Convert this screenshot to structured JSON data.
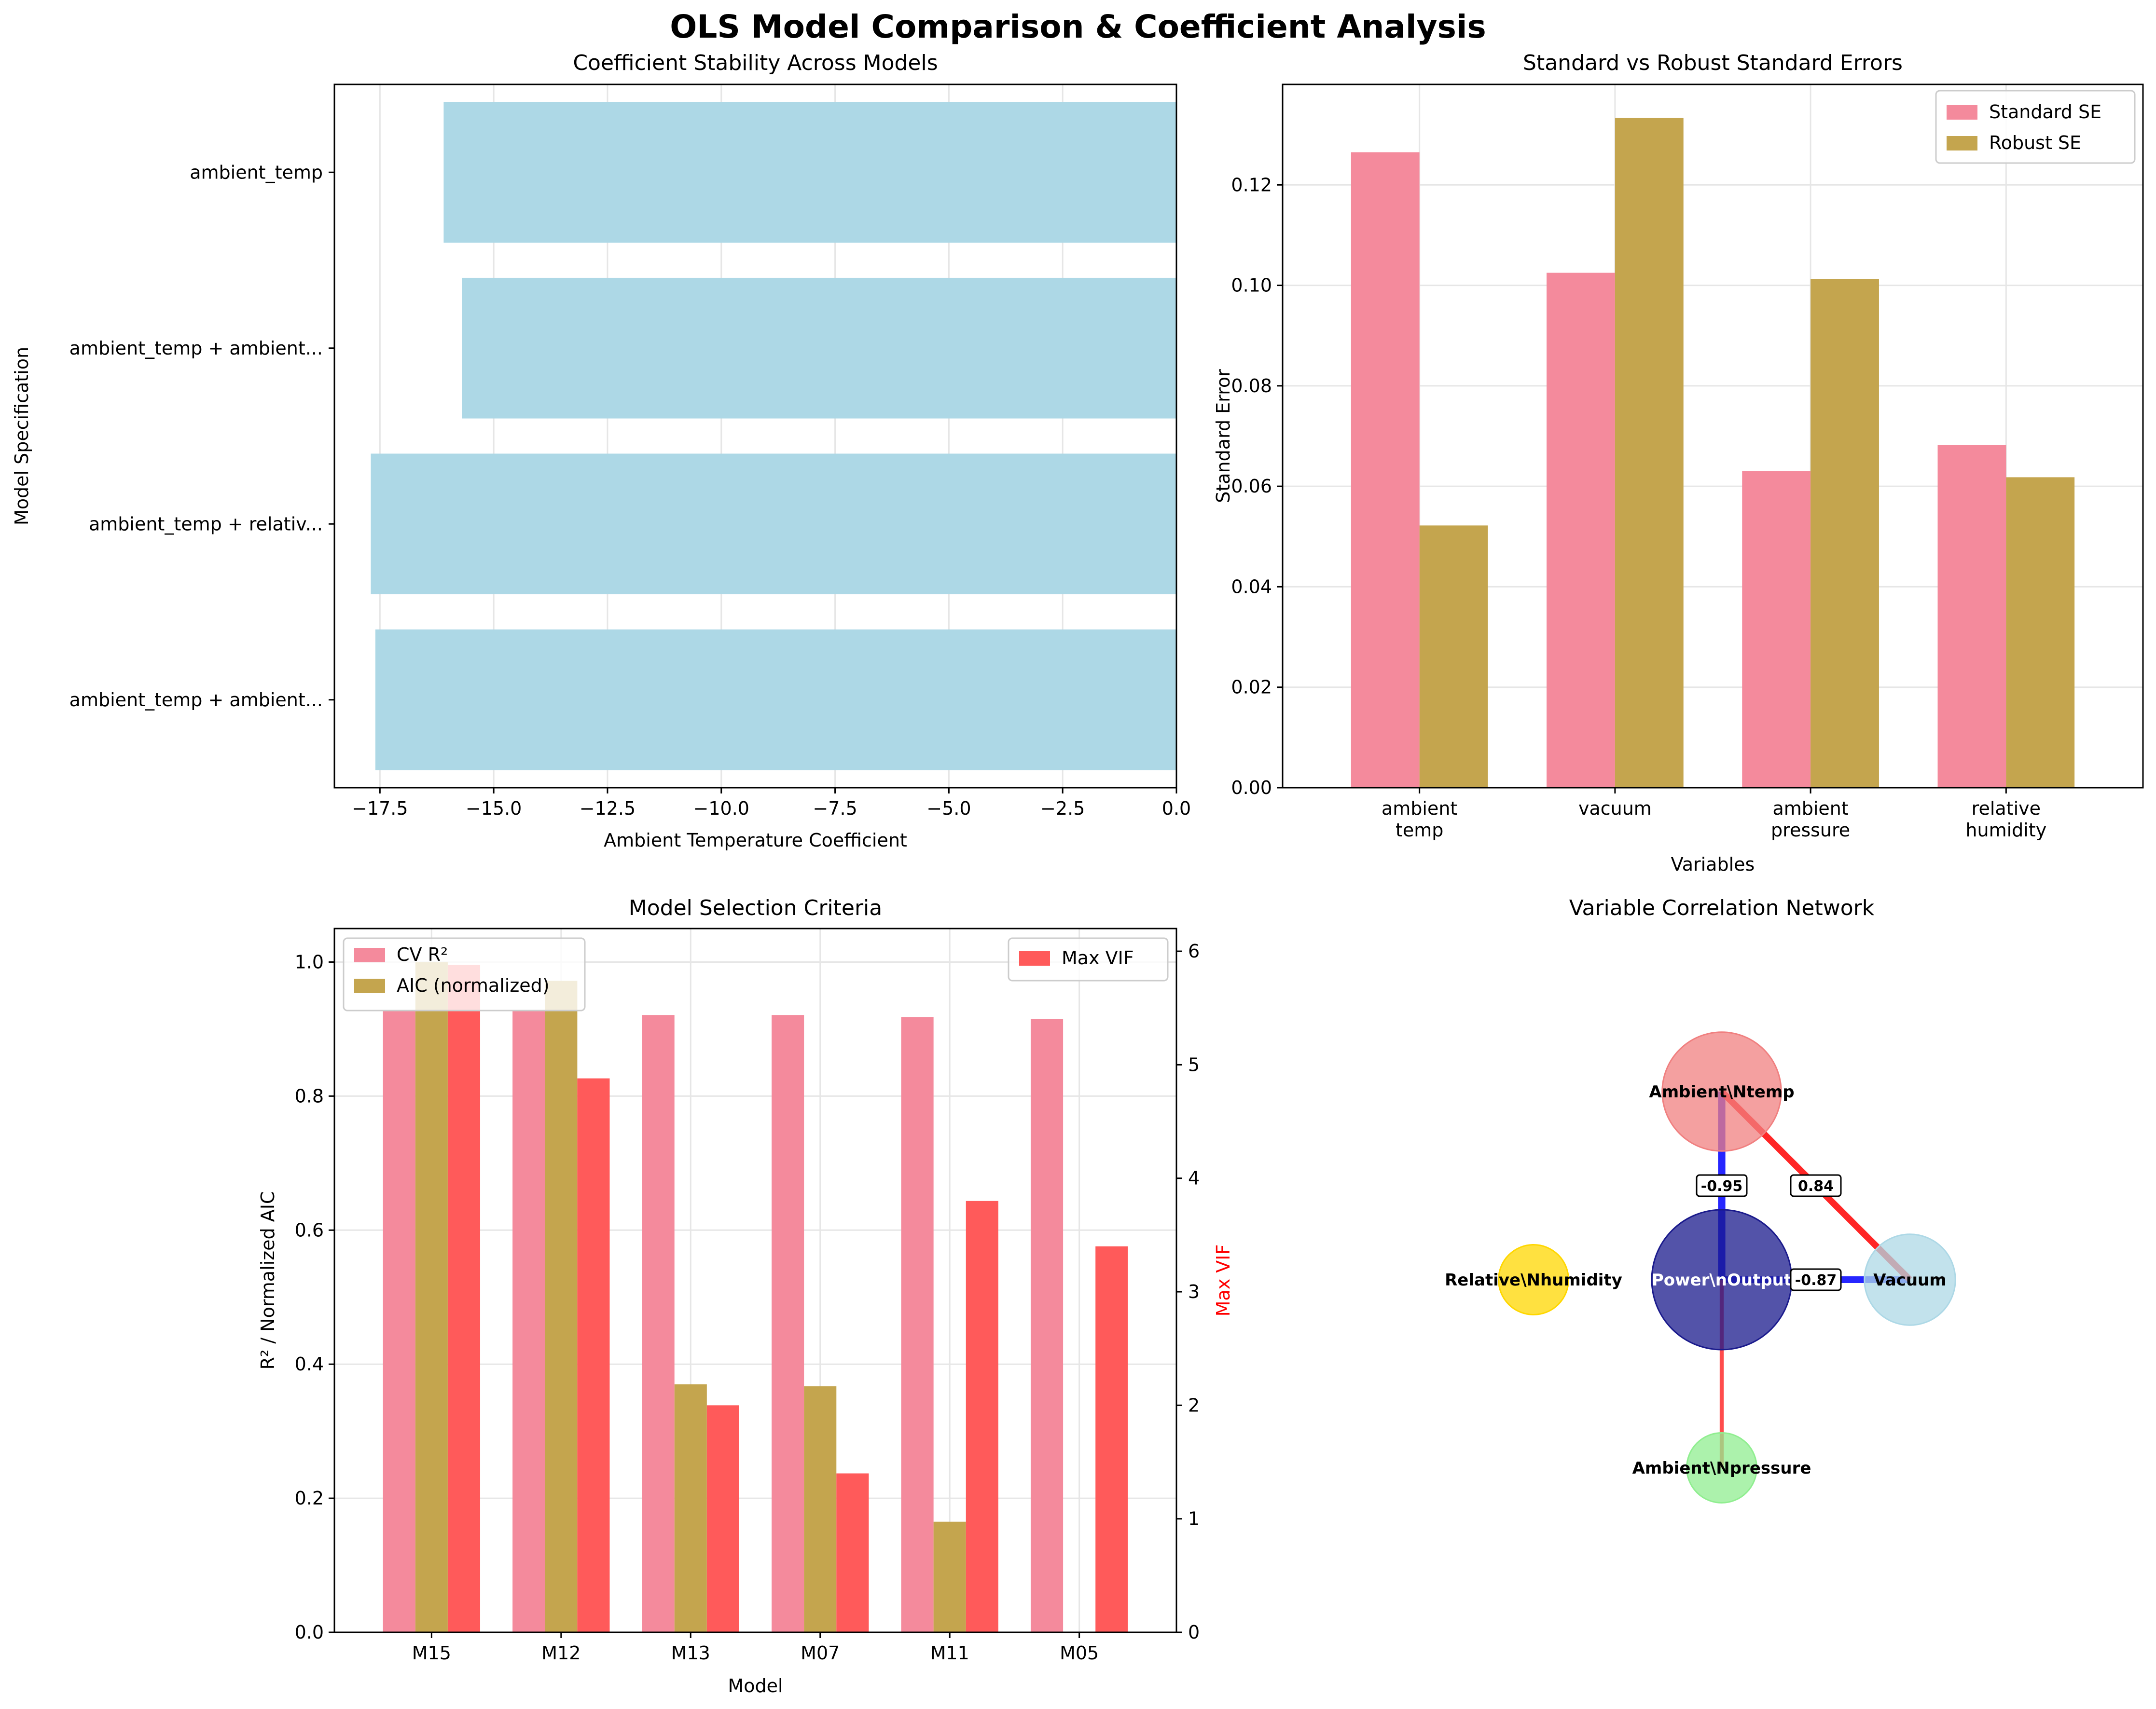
{
  "figure": {
    "title": "OLS Model Comparison & Coefficient Analysis"
  },
  "colors": {
    "stability_bar": "#add8e6",
    "standard_se": "#f48a9c",
    "robust_se": "#c4a54e",
    "max_vif": "#ff5a5a",
    "neg_edge": "#0000ff",
    "pos_edge": "#ff0000"
  },
  "chart_data": [
    {
      "type": "bar",
      "orientation": "horizontal",
      "title": "Coefficient Stability Across Models",
      "xlabel": "Ambient Temperature Coefficient",
      "ylabel": "Model Specification",
      "categories": [
        "ambient_temp",
        "ambient_temp + ambient...",
        "ambient_temp + relativ...",
        "ambient_temp + ambient..."
      ],
      "values": [
        -16.1,
        -15.7,
        -17.7,
        -17.6
      ],
      "xlim": [
        -18.5,
        0.0
      ],
      "xticks": [
        -17.5,
        -15.0,
        -12.5,
        -10.0,
        -7.5,
        -5.0,
        -2.5,
        0.0
      ],
      "xtick_labels": [
        "−17.5",
        "−15.0",
        "−12.5",
        "−10.0",
        "−7.5",
        "−5.0",
        "−2.5",
        "0.0"
      ],
      "grid": true
    },
    {
      "type": "bar",
      "title": "Standard vs Robust Standard Errors",
      "xlabel": "Variables",
      "ylabel": "Standard Error",
      "categories": [
        [
          "ambient",
          "temp"
        ],
        [
          "vacuum"
        ],
        [
          "ambient",
          "pressure"
        ],
        [
          "relative",
          "humidity"
        ]
      ],
      "series": [
        {
          "name": "Standard SE",
          "values": [
            0.1265,
            0.1025,
            0.063,
            0.0682
          ]
        },
        {
          "name": "Robust SE",
          "values": [
            0.0522,
            0.1333,
            0.1013,
            0.0618
          ]
        }
      ],
      "ylim": [
        0,
        0.14
      ],
      "yticks": [
        0.0,
        0.02,
        0.04,
        0.06,
        0.08,
        0.1,
        0.12
      ],
      "ytick_labels": [
        "0.00",
        "0.02",
        "0.04",
        "0.06",
        "0.08",
        "0.10",
        "0.12"
      ],
      "legend": "top-right",
      "grid": true
    },
    {
      "type": "bar",
      "title": "Model Selection Criteria",
      "xlabel": "Model",
      "ylabel": "R² / Normalized AIC",
      "ylabel_right": "Max VIF",
      "categories": [
        "M15",
        "M12",
        "M13",
        "M07",
        "M11",
        "M05"
      ],
      "series": [
        {
          "name": "CV R²",
          "axis": "left",
          "values": [
            0.928,
            0.928,
            0.921,
            0.921,
            0.918,
            0.915
          ]
        },
        {
          "name": "AIC (normalized)",
          "axis": "left",
          "values": [
            1.0,
            0.972,
            0.37,
            0.367,
            0.165,
            0.0
          ]
        },
        {
          "name": "Max VIF",
          "axis": "right",
          "values": [
            5.88,
            4.88,
            2.0,
            1.4,
            3.8,
            3.4
          ]
        }
      ],
      "ylim": [
        0,
        1.05
      ],
      "ylim_right": [
        0,
        6.2
      ],
      "yticks": [
        0.0,
        0.2,
        0.4,
        0.6,
        0.8,
        1.0
      ],
      "ytick_labels": [
        "0.0",
        "0.2",
        "0.4",
        "0.6",
        "0.8",
        "1.0"
      ],
      "yticks_right": [
        0,
        1,
        2,
        3,
        4,
        5,
        6
      ],
      "legend": "top-left (R², AIC) and top-right (Max VIF)",
      "grid": true
    },
    {
      "type": "network",
      "title": "Variable Correlation Network",
      "nodes": [
        {
          "id": "power",
          "label": "Power\\nOutput",
          "color": "#1a1a8c",
          "size": 1.0,
          "x": 0,
          "y": 0
        },
        {
          "id": "temp",
          "label": "Ambient\\Ntemp",
          "color": "#f08080",
          "size": 0.85,
          "x": 0,
          "y": 1
        },
        {
          "id": "vacuum",
          "label": "Vacuum",
          "color": "#add8e6",
          "size": 0.65,
          "x": 1,
          "y": 0
        },
        {
          "id": "humidity",
          "label": "Relative\\Nhumidity",
          "color": "#ffd700",
          "size": 0.5,
          "x": -1,
          "y": 0
        },
        {
          "id": "pressure",
          "label": "Ambient\\Npressure",
          "color": "#90ee90",
          "size": 0.5,
          "x": 0,
          "y": -1
        }
      ],
      "edges": [
        {
          "from": "power",
          "to": "temp",
          "weight": -0.95,
          "label": "-0.95"
        },
        {
          "from": "power",
          "to": "vacuum",
          "weight": -0.87,
          "label": "-0.87"
        },
        {
          "from": "temp",
          "to": "vacuum",
          "weight": 0.84,
          "label": "0.84"
        },
        {
          "from": "power",
          "to": "pressure",
          "weight": 0.52
        }
      ]
    }
  ]
}
